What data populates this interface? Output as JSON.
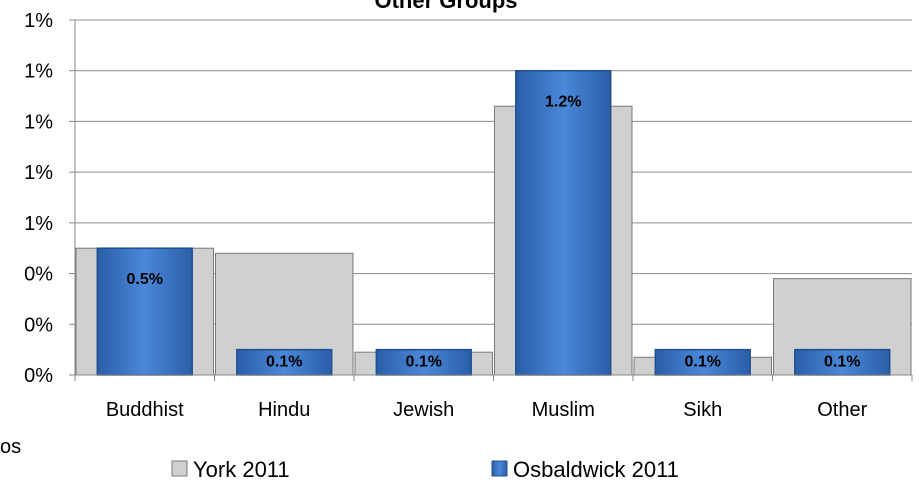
{
  "chart_data": {
    "type": "bar",
    "title": "Other Groups",
    "categories": [
      "Buddhist",
      "Hindu",
      "Jewish",
      "Muslim",
      "Sikh",
      "Other"
    ],
    "series": [
      {
        "name": "York 2011",
        "values": [
          0.5,
          0.48,
          0.09,
          1.06,
          0.07,
          0.38
        ],
        "color": "#d0d0d0"
      },
      {
        "name": "Osbaldwick 2011",
        "values": [
          0.5,
          0.1,
          0.1,
          1.2,
          0.1,
          0.1
        ],
        "color": "#3a73c0",
        "data_labels": [
          "0.5%",
          "0.1%",
          "0.1%",
          "1.2%",
          "0.1%",
          "0.1%"
        ]
      }
    ],
    "y_ticks": [
      "0%",
      "0%",
      "0%",
      "1%",
      "1%",
      "1%",
      "1%",
      "1%"
    ],
    "ylim": [
      0,
      1.4
    ],
    "grid": true,
    "legend_position": "bottom"
  },
  "stray_text": "os"
}
